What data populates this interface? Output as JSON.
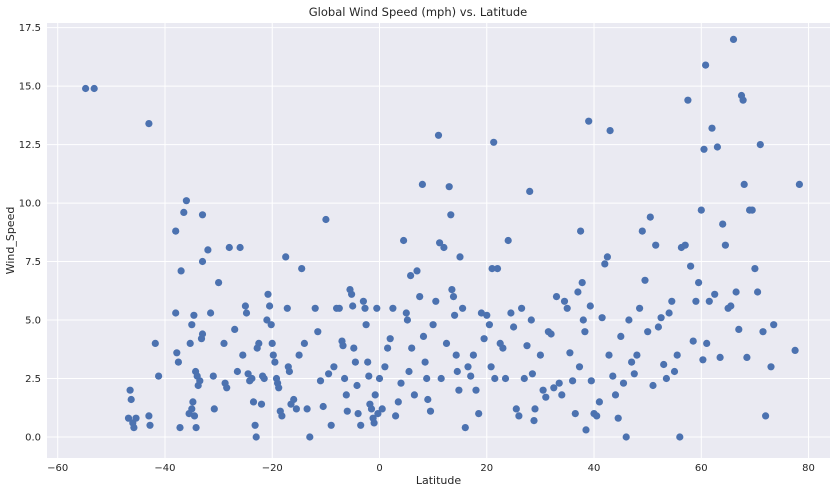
{
  "chart_data": {
    "type": "scatter",
    "title": "Global Wind Speed (mph) vs. Latitude",
    "xlabel": "Latitude",
    "ylabel": "Wind_Speed",
    "xlim": [
      -62,
      84
    ],
    "ylim": [
      -0.9,
      17.7
    ],
    "xticks": [
      -60,
      -40,
      -20,
      0,
      20,
      40,
      60,
      80
    ],
    "yticks": [
      0.0,
      2.5,
      5.0,
      7.5,
      10.0,
      12.5,
      15.0,
      17.5
    ],
    "xtick_labels": [
      "−60",
      "−40",
      "−20",
      "0",
      "20",
      "40",
      "60",
      "80"
    ],
    "ytick_labels": [
      "0.0",
      "2.5",
      "5.0",
      "7.5",
      "10.0",
      "12.5",
      "15.0",
      "17.5"
    ],
    "grid": true,
    "background": "#eaeaf2",
    "marker_color": "#4c72b0",
    "series": [
      {
        "points": [
          [
            -54.8,
            14.9
          ],
          [
            -53.2,
            14.9
          ],
          [
            -43,
            13.4
          ],
          [
            -36,
            10.1
          ],
          [
            -36.5,
            9.6
          ],
          [
            -38,
            8.8
          ],
          [
            -33,
            9.5
          ],
          [
            -32,
            8
          ],
          [
            -30,
            6.6
          ],
          [
            -28,
            8.1
          ],
          [
            -26,
            8.1
          ],
          [
            -37,
            7.1
          ],
          [
            -33,
            7.5
          ],
          [
            -31.5,
            5.3
          ],
          [
            -46.5,
            2
          ],
          [
            -46.3,
            1.6
          ],
          [
            -46.8,
            0.8
          ],
          [
            -46,
            0.6
          ],
          [
            -45.8,
            0.4
          ],
          [
            -45.4,
            0.8
          ],
          [
            -43,
            0.9
          ],
          [
            -42.8,
            0.5
          ],
          [
            -41.8,
            4
          ],
          [
            -41.2,
            2.6
          ],
          [
            -38,
            5.3
          ],
          [
            -37.8,
            3.6
          ],
          [
            -37.5,
            3.2
          ],
          [
            -37.2,
            0.4
          ],
          [
            -35.3,
            4
          ],
          [
            -35,
            4.8
          ],
          [
            -34.6,
            5.2
          ],
          [
            -34.3,
            2.8
          ],
          [
            -34,
            2.6
          ],
          [
            -33.8,
            2.2
          ],
          [
            -33.5,
            2.4
          ],
          [
            -33.2,
            4.2
          ],
          [
            -33,
            4.4
          ],
          [
            -35.5,
            1
          ],
          [
            -35,
            1.2
          ],
          [
            -34.8,
            1.5
          ],
          [
            -34.5,
            0.9
          ],
          [
            -34.2,
            0.4
          ],
          [
            -31,
            2.6
          ],
          [
            -30.8,
            1.2
          ],
          [
            -29,
            4
          ],
          [
            -28.8,
            2.3
          ],
          [
            -28.5,
            2.1
          ],
          [
            -27,
            4.6
          ],
          [
            -26.5,
            2.8
          ],
          [
            -25.5,
            3.5
          ],
          [
            -25,
            5.6
          ],
          [
            -24.8,
            5.3
          ],
          [
            -24.5,
            2.7
          ],
          [
            -24.2,
            2.4
          ],
          [
            -23.8,
            2.5
          ],
          [
            -23.5,
            1.5
          ],
          [
            -23.2,
            0.5
          ],
          [
            -23,
            0
          ],
          [
            -22.8,
            3.8
          ],
          [
            -22.5,
            4
          ],
          [
            -22,
            1.4
          ],
          [
            -21.8,
            2.6
          ],
          [
            -21.5,
            2.5
          ],
          [
            -21,
            5
          ],
          [
            -20.8,
            6.1
          ],
          [
            -20.5,
            5.6
          ],
          [
            -20.2,
            4.8
          ],
          [
            -20,
            4
          ],
          [
            -19.8,
            3.5
          ],
          [
            -19.5,
            3.2
          ],
          [
            -19.2,
            2.5
          ],
          [
            -19,
            2.3
          ],
          [
            -18.8,
            2.1
          ],
          [
            -18.5,
            1.1
          ],
          [
            -18.2,
            0.9
          ],
          [
            -17.5,
            7.7
          ],
          [
            -17.2,
            5.5
          ],
          [
            -17,
            3
          ],
          [
            -16.8,
            2.8
          ],
          [
            -16.5,
            1.4
          ],
          [
            -16,
            1.6
          ],
          [
            -15.5,
            1.2
          ],
          [
            -15,
            3.5
          ],
          [
            -14.5,
            7.2
          ],
          [
            -14,
            4
          ],
          [
            -13.5,
            1.2
          ],
          [
            -13,
            0
          ],
          [
            -12,
            5.5
          ],
          [
            -11.5,
            4.5
          ],
          [
            -11,
            2.4
          ],
          [
            -10.5,
            1.3
          ],
          [
            -10,
            9.3
          ],
          [
            -9.5,
            2.7
          ],
          [
            -9,
            0.5
          ],
          [
            -8.5,
            3
          ],
          [
            -8,
            5.5
          ],
          [
            -7.5,
            5.5
          ],
          [
            -7,
            4.1
          ],
          [
            -6.8,
            3.9
          ],
          [
            -6.5,
            2.5
          ],
          [
            -6.2,
            1.8
          ],
          [
            -6,
            1.1
          ],
          [
            -5.5,
            6.3
          ],
          [
            -5.2,
            6.1
          ],
          [
            -5,
            5.6
          ],
          [
            -4.8,
            3.8
          ],
          [
            -4.5,
            3.2
          ],
          [
            -4.2,
            2.2
          ],
          [
            -4,
            1
          ],
          [
            -3.5,
            0.5
          ],
          [
            -3,
            5.8
          ],
          [
            -2.7,
            5.5
          ],
          [
            -2.5,
            4.8
          ],
          [
            -2.2,
            3.2
          ],
          [
            -2,
            2.6
          ],
          [
            -1.8,
            1.4
          ],
          [
            -1.5,
            1.2
          ],
          [
            -1.2,
            0.8
          ],
          [
            -1,
            0.6
          ],
          [
            -0.8,
            1.8
          ],
          [
            -0.5,
            5.5
          ],
          [
            -0.3,
            1
          ],
          [
            0,
            2.5
          ],
          [
            0.5,
            1.2
          ],
          [
            1,
            3
          ],
          [
            1.5,
            3.8
          ],
          [
            2,
            4.2
          ],
          [
            2.5,
            5.5
          ],
          [
            3,
            0.9
          ],
          [
            3.5,
            1.5
          ],
          [
            4,
            2.3
          ],
          [
            4.5,
            8.4
          ],
          [
            5,
            5.3
          ],
          [
            5.2,
            5
          ],
          [
            5.5,
            2.8
          ],
          [
            5.8,
            6.9
          ],
          [
            6,
            3.8
          ],
          [
            6.5,
            1.8
          ],
          [
            7,
            7.1
          ],
          [
            7.5,
            6
          ],
          [
            8,
            10.8
          ],
          [
            8.2,
            4.3
          ],
          [
            8.5,
            3.2
          ],
          [
            8.8,
            2.5
          ],
          [
            9,
            1.6
          ],
          [
            9.5,
            1.1
          ],
          [
            10,
            4.8
          ],
          [
            10.5,
            5.8
          ],
          [
            11,
            12.9
          ],
          [
            11.2,
            8.3
          ],
          [
            11.5,
            2.5
          ],
          [
            12,
            8.1
          ],
          [
            12.5,
            4
          ],
          [
            13,
            10.7
          ],
          [
            13.3,
            9.5
          ],
          [
            13.5,
            6.3
          ],
          [
            13.8,
            6
          ],
          [
            14,
            5.2
          ],
          [
            14.3,
            3.5
          ],
          [
            14.5,
            2.8
          ],
          [
            14.8,
            2
          ],
          [
            15,
            7.7
          ],
          [
            15.5,
            5.5
          ],
          [
            16,
            0.4
          ],
          [
            16.5,
            3
          ],
          [
            17,
            2.6
          ],
          [
            17.5,
            3.5
          ],
          [
            18,
            2
          ],
          [
            18.5,
            1
          ],
          [
            19,
            5.3
          ],
          [
            19.5,
            4.2
          ],
          [
            20,
            5.2
          ],
          [
            20.5,
            4.8
          ],
          [
            20.8,
            3
          ],
          [
            21,
            7.2
          ],
          [
            21.3,
            12.6
          ],
          [
            21.5,
            2.5
          ],
          [
            22,
            7.2
          ],
          [
            22.5,
            4
          ],
          [
            23,
            3.8
          ],
          [
            23.5,
            2.5
          ],
          [
            24,
            8.4
          ],
          [
            24.5,
            5.3
          ],
          [
            25,
            4.7
          ],
          [
            25.5,
            1.2
          ],
          [
            26,
            0.9
          ],
          [
            26.5,
            5.5
          ],
          [
            27,
            2.5
          ],
          [
            27.5,
            3.9
          ],
          [
            28,
            10.5
          ],
          [
            28.3,
            5
          ],
          [
            28.5,
            2.7
          ],
          [
            28.8,
            0.7
          ],
          [
            29,
            1.2
          ],
          [
            30,
            3.5
          ],
          [
            30.5,
            2
          ],
          [
            31,
            1.7
          ],
          [
            31.5,
            4.5
          ],
          [
            32,
            4.4
          ],
          [
            32.5,
            2.1
          ],
          [
            33,
            6
          ],
          [
            33.5,
            2.3
          ],
          [
            34,
            1.8
          ],
          [
            34.5,
            5.8
          ],
          [
            35,
            5.5
          ],
          [
            35.5,
            3.6
          ],
          [
            36,
            2.4
          ],
          [
            36.5,
            1
          ],
          [
            37,
            6.2
          ],
          [
            37.3,
            3
          ],
          [
            37.5,
            8.8
          ],
          [
            37.8,
            6.6
          ],
          [
            38,
            5
          ],
          [
            38.3,
            4.5
          ],
          [
            38.5,
            0.3
          ],
          [
            39,
            13.5
          ],
          [
            39.3,
            5.6
          ],
          [
            39.5,
            2.4
          ],
          [
            40,
            1
          ],
          [
            40.5,
            0.9
          ],
          [
            41,
            1.5
          ],
          [
            41.5,
            5.1
          ],
          [
            42,
            7.4
          ],
          [
            42.5,
            7.7
          ],
          [
            42.8,
            3.5
          ],
          [
            43,
            13.1
          ],
          [
            43.5,
            2.6
          ],
          [
            44,
            1.8
          ],
          [
            44.5,
            0.8
          ],
          [
            45,
            4.3
          ],
          [
            45.5,
            2.3
          ],
          [
            46,
            0
          ],
          [
            46.5,
            5
          ],
          [
            47,
            3.2
          ],
          [
            47.5,
            2.7
          ],
          [
            48,
            3.5
          ],
          [
            48.5,
            5.5
          ],
          [
            49,
            8.8
          ],
          [
            49.5,
            6.7
          ],
          [
            50,
            4.5
          ],
          [
            50.5,
            9.4
          ],
          [
            51,
            2.2
          ],
          [
            51.5,
            8.2
          ],
          [
            52,
            4.7
          ],
          [
            52.5,
            5.1
          ],
          [
            53,
            3.1
          ],
          [
            53.5,
            2.5
          ],
          [
            54,
            5.3
          ],
          [
            54.5,
            5.8
          ],
          [
            55,
            2.8
          ],
          [
            55.5,
            3.5
          ],
          [
            56,
            0
          ],
          [
            56.3,
            8.1
          ],
          [
            57,
            8.2
          ],
          [
            57.5,
            14.4
          ],
          [
            58,
            7.3
          ],
          [
            58.5,
            4.1
          ],
          [
            59,
            5.8
          ],
          [
            59.5,
            6.6
          ],
          [
            60,
            9.7
          ],
          [
            60.3,
            3.3
          ],
          [
            60.5,
            12.3
          ],
          [
            60.8,
            15.9
          ],
          [
            61,
            4
          ],
          [
            61.5,
            5.8
          ],
          [
            62,
            13.2
          ],
          [
            62.5,
            6.1
          ],
          [
            63,
            12.4
          ],
          [
            63.5,
            3.4
          ],
          [
            64,
            9.1
          ],
          [
            64.5,
            8.2
          ],
          [
            65,
            5.5
          ],
          [
            65.5,
            5.6
          ],
          [
            66,
            17
          ],
          [
            66.5,
            6.2
          ],
          [
            67,
            4.6
          ],
          [
            67.5,
            14.6
          ],
          [
            67.8,
            14.4
          ],
          [
            68,
            10.8
          ],
          [
            68.5,
            3.4
          ],
          [
            69,
            9.7
          ],
          [
            69.5,
            9.7
          ],
          [
            70,
            7.2
          ],
          [
            70.5,
            6.2
          ],
          [
            71,
            12.5
          ],
          [
            71.5,
            4.5
          ],
          [
            72,
            0.9
          ],
          [
            73,
            3
          ],
          [
            73.5,
            4.8
          ],
          [
            77.5,
            3.7
          ],
          [
            78.3,
            10.8
          ]
        ]
      }
    ]
  }
}
